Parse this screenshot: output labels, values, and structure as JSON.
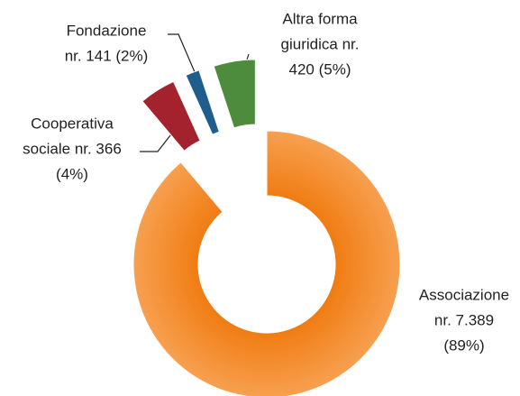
{
  "chart_data": {
    "type": "donut",
    "values": [
      7389,
      366,
      141,
      420
    ],
    "data_labels": [
      [
        "Associazione",
        "nr. 7.389",
        "(89%)"
      ],
      [
        "Cooperativa",
        "sociale nr. 366",
        "(4%)"
      ],
      [
        "Fondazione",
        "nr. 141  (2%)"
      ],
      [
        "Altra forma",
        "giuridica nr.",
        "420  (5%)"
      ]
    ],
    "colors": [
      "#f5861f",
      "#a3222e",
      "#1f5e8c",
      "#4c8c3c"
    ]
  }
}
